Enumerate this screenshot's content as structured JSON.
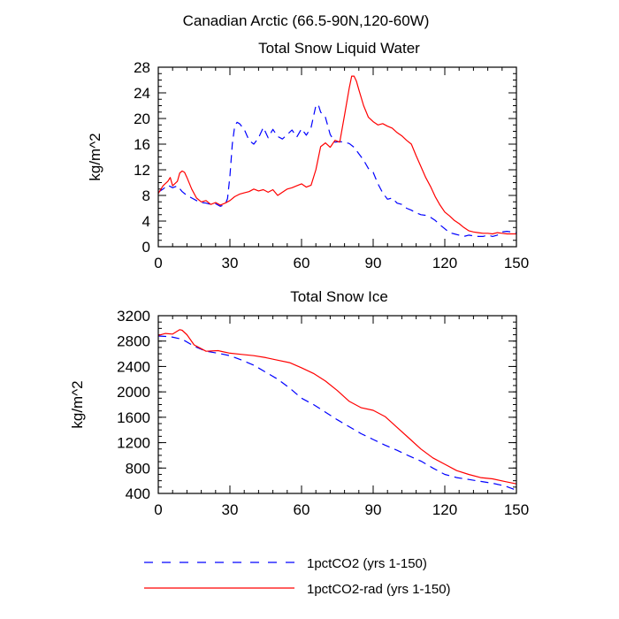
{
  "figure": {
    "title": "Canadian Arctic (66.5-90N,120-60W)"
  },
  "chart_data": [
    {
      "type": "line",
      "title": "Total Snow Liquid Water",
      "xlabel": "",
      "ylabel": "kg/m^2",
      "xlim": [
        0,
        150
      ],
      "ylim": [
        0,
        28
      ],
      "xticks": [
        0,
        30,
        60,
        90,
        120,
        150
      ],
      "yticks": [
        0,
        4,
        8,
        12,
        16,
        20,
        24,
        28
      ],
      "grid": false,
      "series": [
        {
          "name": "1pctCO2 (yrs 1-150)",
          "color": "#0000ff",
          "dash": "dashed",
          "x": [
            0,
            2,
            4,
            6,
            8,
            10,
            12,
            14,
            16,
            18,
            20,
            22,
            24,
            26,
            28,
            29,
            30,
            31,
            32,
            33,
            34,
            36,
            38,
            40,
            42,
            44,
            46,
            48,
            50,
            52,
            54,
            56,
            58,
            60,
            62,
            64,
            66,
            67,
            68,
            70,
            72,
            74,
            76,
            78,
            80,
            82,
            84,
            86,
            88,
            90,
            92,
            94,
            96,
            98,
            100,
            102,
            104,
            106,
            108,
            110,
            112,
            114,
            116,
            118,
            120,
            122,
            124,
            126,
            128,
            130,
            132,
            134,
            136,
            138,
            140,
            142,
            144,
            146,
            148,
            150
          ],
          "y": [
            8.5,
            9.0,
            9.6,
            9.2,
            9.5,
            8.6,
            8.0,
            7.6,
            7.2,
            6.9,
            6.8,
            6.6,
            6.7,
            6.3,
            6.6,
            7.5,
            11.0,
            16.0,
            18.8,
            19.4,
            19.2,
            18.3,
            16.6,
            16.0,
            17.0,
            18.6,
            17.0,
            18.3,
            17.2,
            16.8,
            17.5,
            18.2,
            17.1,
            18.4,
            17.4,
            18.6,
            22.0,
            22.2,
            21.0,
            20.2,
            17.5,
            16.3,
            16.4,
            16.3,
            16.1,
            15.5,
            14.5,
            13.5,
            12.2,
            11.6,
            9.8,
            8.4,
            7.4,
            7.6,
            6.8,
            6.6,
            6.0,
            5.7,
            5.3,
            5.0,
            4.9,
            4.6,
            4.1,
            3.4,
            2.8,
            2.2,
            2.0,
            1.8,
            1.6,
            1.8,
            1.7,
            1.6,
            1.6,
            1.8,
            1.6,
            1.8,
            2.3,
            2.4,
            2.3,
            2.2
          ]
        },
        {
          "name": "1pctCO2-rad (yrs 1-150)",
          "color": "#ff0000",
          "dash": "solid",
          "x": [
            0,
            2,
            4,
            5,
            6,
            8,
            9,
            10,
            11,
            12,
            14,
            16,
            18,
            20,
            22,
            24,
            26,
            28,
            30,
            32,
            34,
            36,
            38,
            40,
            42,
            44,
            46,
            48,
            50,
            52,
            54,
            56,
            58,
            60,
            62,
            64,
            66,
            68,
            70,
            72,
            74,
            76,
            78,
            80,
            81,
            82,
            83,
            84,
            86,
            88,
            90,
            92,
            94,
            96,
            98,
            100,
            102,
            104,
            106,
            108,
            110,
            112,
            114,
            116,
            118,
            120,
            122,
            124,
            126,
            128,
            130,
            132,
            134,
            136,
            138,
            140,
            142,
            144,
            146,
            148,
            150
          ],
          "y": [
            8.3,
            9.5,
            10.2,
            10.8,
            9.5,
            10.2,
            11.5,
            11.8,
            11.6,
            10.8,
            9.0,
            7.6,
            7.0,
            7.2,
            6.6,
            6.9,
            6.5,
            6.8,
            7.2,
            7.8,
            8.2,
            8.4,
            8.6,
            9.0,
            8.7,
            8.9,
            8.5,
            8.9,
            8.0,
            8.5,
            9.0,
            9.2,
            9.5,
            9.8,
            9.3,
            9.6,
            12.0,
            15.6,
            16.2,
            15.5,
            16.6,
            16.3,
            20.5,
            24.8,
            26.6,
            26.6,
            25.8,
            24.5,
            22.0,
            20.2,
            19.5,
            19.0,
            19.2,
            18.8,
            18.5,
            17.8,
            17.3,
            16.6,
            16.0,
            14.2,
            12.5,
            10.8,
            9.4,
            7.8,
            6.5,
            5.4,
            4.8,
            4.1,
            3.6,
            3.0,
            2.5,
            2.3,
            2.2,
            2.1,
            2.1,
            2.0,
            2.2,
            2.1,
            2.0,
            2.0,
            2.0
          ]
        }
      ]
    },
    {
      "type": "line",
      "title": "Total Snow Ice",
      "xlabel": "",
      "ylabel": "kg/m^2",
      "xlim": [
        0,
        150
      ],
      "ylim": [
        400,
        3200
      ],
      "xticks": [
        0,
        30,
        60,
        90,
        120,
        150
      ],
      "yticks": [
        400,
        800,
        1200,
        1600,
        2000,
        2400,
        2800,
        3200
      ],
      "grid": false,
      "series": [
        {
          "name": "1pctCO2 (yrs 1-150)",
          "color": "#0000ff",
          "dash": "dashed",
          "x": [
            0,
            5,
            10,
            15,
            20,
            25,
            30,
            35,
            40,
            45,
            50,
            55,
            60,
            65,
            70,
            75,
            80,
            85,
            90,
            95,
            100,
            105,
            110,
            115,
            120,
            125,
            130,
            135,
            140,
            145,
            150
          ],
          "y": [
            2880,
            2870,
            2830,
            2720,
            2640,
            2610,
            2570,
            2500,
            2420,
            2310,
            2200,
            2060,
            1900,
            1800,
            1680,
            1560,
            1450,
            1340,
            1250,
            1160,
            1080,
            990,
            910,
            800,
            700,
            650,
            620,
            590,
            560,
            520,
            450
          ]
        },
        {
          "name": "1pctCO2-rad (yrs 1-150)",
          "color": "#ff0000",
          "dash": "solid",
          "x": [
            0,
            3,
            6,
            9,
            10,
            12,
            15,
            20,
            25,
            30,
            35,
            40,
            45,
            50,
            55,
            60,
            65,
            70,
            75,
            80,
            85,
            90,
            95,
            100,
            105,
            110,
            115,
            120,
            125,
            130,
            135,
            140,
            145,
            150
          ],
          "y": [
            2890,
            2920,
            2910,
            2980,
            2970,
            2900,
            2740,
            2640,
            2650,
            2610,
            2590,
            2570,
            2540,
            2500,
            2460,
            2380,
            2290,
            2170,
            2020,
            1850,
            1750,
            1710,
            1610,
            1440,
            1270,
            1100,
            960,
            860,
            760,
            700,
            650,
            630,
            590,
            550
          ]
        }
      ]
    }
  ],
  "legend": [
    {
      "label": "1pctCO2 (yrs 1-150)",
      "color": "#0000ff",
      "dash": "dashed"
    },
    {
      "label": "1pctCO2-rad (yrs 1-150)",
      "color": "#ff0000",
      "dash": "solid"
    }
  ]
}
